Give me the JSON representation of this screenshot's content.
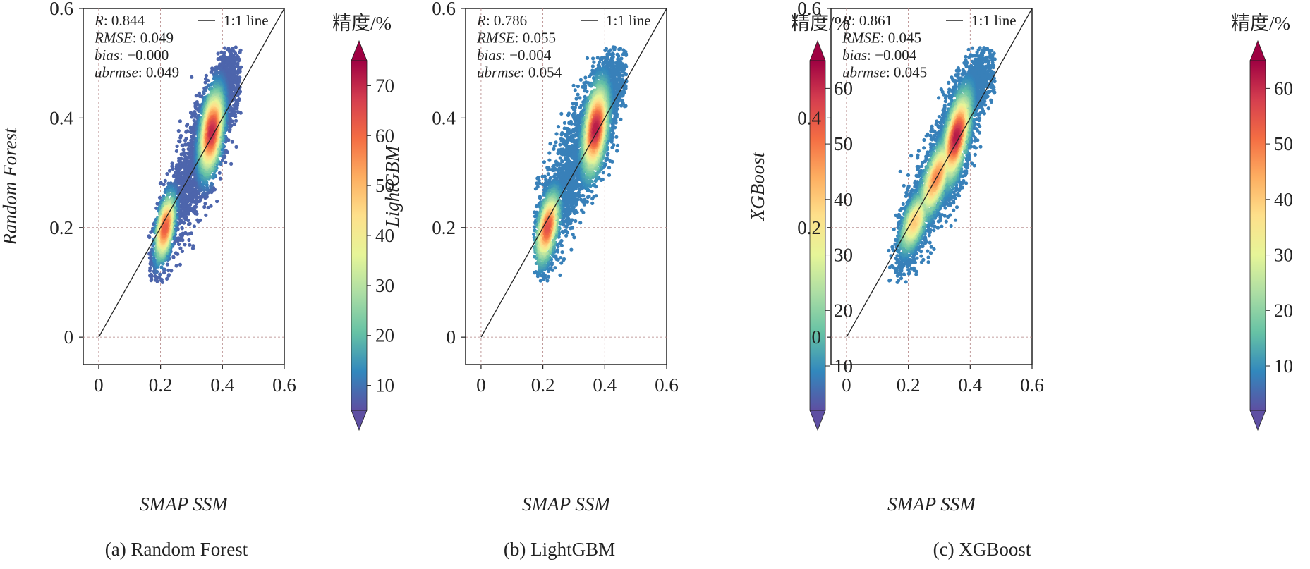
{
  "figure_title": "",
  "chart_data": [
    {
      "type": "scatter",
      "title": "",
      "caption": "(a) Random Forest",
      "xlabel": "SMAP SSM",
      "ylabel": "Random Forest",
      "xlim": [
        -0.05,
        0.6
      ],
      "ylim": [
        -0.05,
        0.6
      ],
      "x_ticks": [
        {
          "v": 0,
          "label": "0"
        },
        {
          "v": 0.2,
          "label": "0.2"
        },
        {
          "v": 0.4,
          "label": "0.4"
        },
        {
          "v": 0.6,
          "label": "0.6"
        }
      ],
      "y_ticks": [
        {
          "v": 0,
          "label": "0"
        },
        {
          "v": 0.2,
          "label": "0.2"
        },
        {
          "v": 0.4,
          "label": "0.4"
        },
        {
          "v": 0.6,
          "label": "0.6"
        }
      ],
      "grid": true,
      "legend": {
        "label": "1:1 line",
        "placement": "top-right"
      },
      "reference_line": {
        "label": "1:1 line",
        "from": [
          0,
          0
        ],
        "to": [
          0.6,
          0.6
        ]
      },
      "stats": [
        {
          "name": "R",
          "value": ": 0.844"
        },
        {
          "name": "RMSE",
          "value": ": 0.049"
        },
        {
          "name": "bias",
          "value": ": −0.000"
        },
        {
          "name": "ubrmse",
          "value": ": 0.049"
        }
      ],
      "density_clusters": [
        {
          "x": 0.21,
          "y": 0.19,
          "sx": 0.02,
          "sy": 0.035,
          "rho": 0.5,
          "n": 700
        },
        {
          "x": 0.36,
          "y": 0.37,
          "sx": 0.03,
          "sy": 0.05,
          "rho": 0.5,
          "n": 1800
        },
        {
          "x": 0.28,
          "y": 0.27,
          "sx": 0.04,
          "sy": 0.06,
          "rho": 0.7,
          "n": 900
        },
        {
          "x": 0.42,
          "y": 0.47,
          "sx": 0.025,
          "sy": 0.03,
          "rho": 0.3,
          "n": 500
        }
      ],
      "x_range": [
        0.16,
        0.46
      ],
      "y_range": [
        0.1,
        0.53
      ],
      "hotspots": [
        {
          "x": 0.365,
          "y": 0.375,
          "sx": 0.022,
          "sy": 0.045,
          "rho": 0.4,
          "value": 70
        },
        {
          "x": 0.215,
          "y": 0.2,
          "sx": 0.018,
          "sy": 0.035,
          "rho": 0.5,
          "value": 62
        }
      ],
      "colorbar": {
        "label": "精度/%",
        "min": 5,
        "max": 75,
        "ticks": [
          10,
          20,
          30,
          40,
          50,
          60,
          70
        ]
      }
    },
    {
      "type": "scatter",
      "title": "",
      "caption": "(b) LightGBM",
      "xlabel": "SMAP SSM",
      "ylabel": "LightGBM",
      "xlim": [
        -0.05,
        0.6
      ],
      "ylim": [
        -0.05,
        0.6
      ],
      "x_ticks": [
        {
          "v": 0,
          "label": "0"
        },
        {
          "v": 0.2,
          "label": "0.2"
        },
        {
          "v": 0.4,
          "label": "0.4"
        },
        {
          "v": 0.6,
          "label": "0.6"
        }
      ],
      "y_ticks": [
        {
          "v": 0,
          "label": "0"
        },
        {
          "v": 0.2,
          "label": "0.2"
        },
        {
          "v": 0.4,
          "label": "0.4"
        },
        {
          "v": 0.6,
          "label": "0.6"
        }
      ],
      "grid": true,
      "legend": {
        "label": "1:1 line",
        "placement": "top-right"
      },
      "reference_line": {
        "label": "1:1 line",
        "from": [
          0,
          0
        ],
        "to": [
          0.6,
          0.6
        ]
      },
      "stats": [
        {
          "name": "R",
          "value": ": 0.786"
        },
        {
          "name": "RMSE",
          "value": ": 0.055"
        },
        {
          "name": "bias",
          "value": ": −0.004"
        },
        {
          "name": "ubrmse",
          "value": ": 0.054"
        }
      ],
      "density_clusters": [
        {
          "x": 0.21,
          "y": 0.2,
          "sx": 0.02,
          "sy": 0.04,
          "rho": 0.4,
          "n": 700
        },
        {
          "x": 0.37,
          "y": 0.38,
          "sx": 0.03,
          "sy": 0.05,
          "rho": 0.5,
          "n": 1800
        },
        {
          "x": 0.28,
          "y": 0.29,
          "sx": 0.04,
          "sy": 0.07,
          "rho": 0.6,
          "n": 900
        },
        {
          "x": 0.42,
          "y": 0.46,
          "sx": 0.028,
          "sy": 0.035,
          "rho": 0.3,
          "n": 500
        }
      ],
      "x_range": [
        0.17,
        0.47
      ],
      "y_range": [
        0.1,
        0.53
      ],
      "hotspots": [
        {
          "x": 0.37,
          "y": 0.38,
          "sx": 0.022,
          "sy": 0.045,
          "rho": 0.4,
          "value": 62
        },
        {
          "x": 0.215,
          "y": 0.2,
          "sx": 0.02,
          "sy": 0.035,
          "rho": 0.5,
          "value": 55
        }
      ],
      "colorbar": {
        "label": "精度/%",
        "min": 2,
        "max": 65,
        "ticks": [
          10,
          20,
          30,
          40,
          50,
          60
        ]
      }
    },
    {
      "type": "scatter",
      "title": "",
      "caption": "(c) XGBoost",
      "xlabel": "SMAP SSM",
      "ylabel": "XGBoost",
      "xlim": [
        -0.05,
        0.6
      ],
      "ylim": [
        -0.05,
        0.6
      ],
      "x_ticks": [
        {
          "v": 0,
          "label": "0"
        },
        {
          "v": 0.2,
          "label": "0.2"
        },
        {
          "v": 0.4,
          "label": "0.4"
        },
        {
          "v": 0.6,
          "label": "0.6"
        }
      ],
      "y_ticks": [
        {
          "v": 0,
          "label": "0"
        },
        {
          "v": 0.2,
          "label": "0.2"
        },
        {
          "v": 0.4,
          "label": "0.4"
        },
        {
          "v": 0.6,
          "label": "0.6"
        }
      ],
      "grid": true,
      "legend": {
        "label": "1:1 line",
        "placement": "top-right"
      },
      "reference_line": {
        "label": "1:1 line",
        "from": [
          0,
          0
        ],
        "to": [
          0.6,
          0.6
        ]
      },
      "stats": [
        {
          "name": "R",
          "value": ": 0.861"
        },
        {
          "name": "RMSE",
          "value": ": 0.045"
        },
        {
          "name": "bias",
          "value": ": −0.004"
        },
        {
          "name": "ubrmse",
          "value": ": 0.045"
        }
      ],
      "density_clusters": [
        {
          "x": 0.21,
          "y": 0.2,
          "sx": 0.025,
          "sy": 0.04,
          "rho": 0.6,
          "n": 800
        },
        {
          "x": 0.35,
          "y": 0.36,
          "sx": 0.035,
          "sy": 0.055,
          "rho": 0.6,
          "n": 1800
        },
        {
          "x": 0.28,
          "y": 0.28,
          "sx": 0.045,
          "sy": 0.065,
          "rho": 0.75,
          "n": 1000
        },
        {
          "x": 0.43,
          "y": 0.47,
          "sx": 0.03,
          "sy": 0.03,
          "rho": 0.3,
          "n": 500
        }
      ],
      "x_range": [
        0.13,
        0.48
      ],
      "y_range": [
        0.1,
        0.53
      ],
      "hotspots": [
        {
          "x": 0.355,
          "y": 0.365,
          "sx": 0.025,
          "sy": 0.045,
          "rho": 0.6,
          "value": 62
        },
        {
          "x": 0.29,
          "y": 0.29,
          "sx": 0.03,
          "sy": 0.04,
          "rho": 0.7,
          "value": 48
        },
        {
          "x": 0.22,
          "y": 0.21,
          "sx": 0.025,
          "sy": 0.03,
          "rho": 0.6,
          "value": 40
        }
      ],
      "colorbar": {
        "label": "精度/%",
        "min": 2,
        "max": 65,
        "ticks": [
          10,
          20,
          30,
          40,
          50,
          60
        ]
      }
    }
  ],
  "colors": {
    "colormap": [
      "#5e4fa2",
      "#3288bd",
      "#66c2a5",
      "#abdda4",
      "#e6f598",
      "#fee08b",
      "#fdae61",
      "#f46d43",
      "#d53e4f",
      "#9e0142"
    ],
    "axis": "#222222",
    "grid": "#b08080",
    "reference_line": "#222222"
  }
}
